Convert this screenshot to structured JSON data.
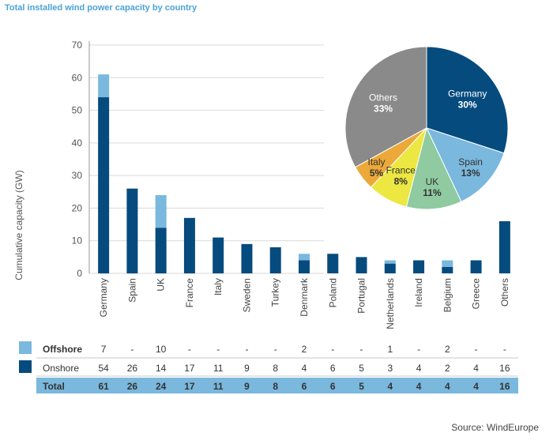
{
  "header": {
    "title": "Total installed wind power capacity by country"
  },
  "source": "Source: WindEurope",
  "colors": {
    "offshore": "#7ab8de",
    "onshore": "#064b7e",
    "grid": "#d9d9d9",
    "total_bg": "#7ab8de"
  },
  "chart_data": [
    {
      "type": "bar",
      "stacked": true,
      "ylabel": "Cumulative capacity (GW)",
      "ylim": [
        0,
        70
      ],
      "yticks": [
        0,
        10,
        20,
        30,
        40,
        50,
        60,
        70
      ],
      "grid": true,
      "categories": [
        "Germany",
        "Spain",
        "UK",
        "France",
        "Italy",
        "Sweden",
        "Turkey",
        "Denmark",
        "Poland",
        "Portugal",
        "Netherlands",
        "Ireland",
        "Belgium",
        "Greece",
        "Others"
      ],
      "series": [
        {
          "name": "Onshore",
          "color": "#064b7e",
          "values": [
            54,
            26,
            14,
            17,
            11,
            9,
            8,
            4,
            6,
            5,
            3,
            4,
            2,
            4,
            16
          ]
        },
        {
          "name": "Offshore",
          "color": "#7ab8de",
          "values": [
            7,
            0,
            10,
            0,
            0,
            0,
            0,
            2,
            0,
            0,
            1,
            0,
            2,
            0,
            0
          ]
        }
      ],
      "table": {
        "rows": [
          {
            "label": "Offshore",
            "color": "#7ab8de",
            "cells": [
              "7",
              "-",
              "10",
              "-",
              "-",
              "-",
              "-",
              "2",
              "-",
              "-",
              "1",
              "-",
              "2",
              "-",
              "-"
            ]
          },
          {
            "label": "Onshore",
            "color": "#064b7e",
            "cells": [
              "54",
              "26",
              "14",
              "17",
              "11",
              "9",
              "8",
              "4",
              "6",
              "5",
              "3",
              "4",
              "2",
              "4",
              "16"
            ]
          },
          {
            "label": "Total",
            "color": null,
            "cells": [
              "61",
              "26",
              "24",
              "17",
              "11",
              "9",
              "8",
              "6",
              "6",
              "5",
              "4",
              "4",
              "4",
              "4",
              "16"
            ]
          }
        ]
      }
    },
    {
      "type": "pie",
      "slices": [
        {
          "label": "Germany",
          "pct": "30%",
          "value": 30,
          "color": "#064b7e",
          "text_color": "#ffffff"
        },
        {
          "label": "Spain",
          "pct": "13%",
          "value": 13,
          "color": "#7ab8de",
          "text_color": "#333333"
        },
        {
          "label": "UK",
          "pct": "11%",
          "value": 11,
          "color": "#8fcaa1",
          "text_color": "#333333"
        },
        {
          "label": "France",
          "pct": "8%",
          "value": 8,
          "color": "#ece741",
          "text_color": "#333333"
        },
        {
          "label": "Italy",
          "pct": "5%",
          "value": 5,
          "color": "#eca93a",
          "text_color": "#333333"
        },
        {
          "label": "Others",
          "pct": "33%",
          "value": 33,
          "color": "#8a8a8a",
          "text_color": "#ffffff"
        }
      ]
    }
  ]
}
